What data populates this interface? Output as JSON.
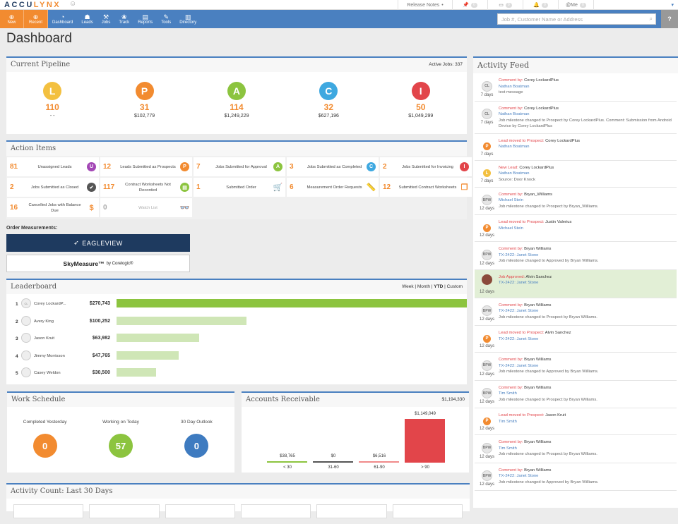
{
  "app": {
    "logo_a": "ACCU",
    "logo_b": "LYNX"
  },
  "topbar": {
    "release_notes": "Release Notes",
    "counts": [
      "0",
      "0",
      "0",
      "0"
    ],
    "me": "@Me"
  },
  "nav": {
    "items": [
      {
        "label": "New",
        "icon": "plus-circle"
      },
      {
        "label": "Recent",
        "icon": "plus-circle"
      },
      {
        "label": "Dashboard",
        "icon": "gauge"
      },
      {
        "label": "Leads",
        "icon": "person"
      },
      {
        "label": "Jobs",
        "icon": "hammer"
      },
      {
        "label": "Track",
        "icon": "paw"
      },
      {
        "label": "Reports",
        "icon": "document"
      },
      {
        "label": "Tools",
        "icon": "wrench"
      },
      {
        "label": "Directory",
        "icon": "book"
      }
    ],
    "search_placeholder": "Job #, Customer Name or Address"
  },
  "page_title": "Dashboard",
  "pipeline": {
    "title": "Current Pipeline",
    "active_jobs": "Active Jobs: 337",
    "stages": [
      {
        "letter": "L",
        "color": "#f3c040",
        "count": "110",
        "value": "- -"
      },
      {
        "letter": "P",
        "color": "#f28b30",
        "count": "31",
        "value": "$102,779"
      },
      {
        "letter": "A",
        "color": "#8cc43f",
        "count": "114",
        "value": "$1,249,229"
      },
      {
        "letter": "C",
        "color": "#3ea8e0",
        "count": "32",
        "value": "$627,196"
      },
      {
        "letter": "I",
        "color": "#e2454a",
        "count": "50",
        "value": "$1,049,299"
      }
    ]
  },
  "action_items": {
    "title": "Action Items",
    "items": [
      {
        "n": "81",
        "label": "Unassigned Leads",
        "icon": "U",
        "color": "#a347b5"
      },
      {
        "n": "12",
        "label": "Leads Submitted as Prospects",
        "icon": "P",
        "color": "#f28b30"
      },
      {
        "n": "7",
        "label": "Jobs Submitted for Approval",
        "icon": "A",
        "color": "#8cc43f"
      },
      {
        "n": "3",
        "label": "Jobs Submitted as Completed",
        "icon": "C",
        "color": "#3ea8e0"
      },
      {
        "n": "2",
        "label": "Jobs Submitted for Invoicing",
        "icon": "I",
        "color": "#e2454a"
      },
      {
        "n": "2",
        "label": "Jobs Submitted as Closed",
        "icon": "✔",
        "color": "#555"
      },
      {
        "n": "117",
        "label": "Contract Worksheets Not Recorded",
        "icon": "▤",
        "color": "#8cc43f"
      },
      {
        "n": "1",
        "label": "Submitted Order",
        "icon": "🛒",
        "color": "plain"
      },
      {
        "n": "6",
        "label": "Measurement Order Requests",
        "icon": "📏",
        "color": "plain"
      },
      {
        "n": "12",
        "label": "Submitted Contract Worksheets",
        "icon": "❐",
        "color": "plain"
      },
      {
        "n": "16",
        "label": "Cancelled Jobs with Balance Due",
        "icon": "$",
        "color": "plain"
      },
      {
        "n": "0",
        "label": "Watch List",
        "icon": "👓",
        "color": "grey"
      }
    ]
  },
  "order_measurements": {
    "label": "Order Measurements:",
    "eagleview": "EAGLEVIEW",
    "skymeasure": "SkyMeasure™",
    "by": "by Corelogic®"
  },
  "leaderboard": {
    "title": "Leaderboard",
    "periods": [
      "Week",
      "Month",
      "YTD",
      "Custom"
    ],
    "active_period": "YTD",
    "rows": [
      {
        "rank": "1",
        "name": "Corey LockardP...",
        "initials": "CL",
        "value": "$270,743",
        "amount": 270743
      },
      {
        "rank": "2",
        "name": "Avery King",
        "initials": "",
        "value": "$100,252",
        "amount": 100252
      },
      {
        "rank": "3",
        "name": "Jason Kruit",
        "initials": "",
        "value": "$63,982",
        "amount": 63982
      },
      {
        "rank": "4",
        "name": "Jimmy Morrisson",
        "initials": "",
        "value": "$47,765",
        "amount": 47765
      },
      {
        "rank": "5",
        "name": "Casey Weldon",
        "initials": "",
        "value": "$30,500",
        "amount": 30500
      }
    ]
  },
  "work_schedule": {
    "title": "Work Schedule",
    "items": [
      {
        "label": "Completed Yesterday",
        "value": "0",
        "color": "#f28b30"
      },
      {
        "label": "Working on Today",
        "value": "57",
        "color": "#8cc43f"
      },
      {
        "label": "30 Day Outlook",
        "value": "0",
        "color": "#3e7bc0"
      }
    ]
  },
  "accounts_receivable": {
    "title": "Accounts Receivable",
    "total": "$1,194,330",
    "chart_data": {
      "type": "bar",
      "categories": [
        "< 30",
        "31-60",
        "61-90",
        "> 90"
      ],
      "values": [
        38765,
        0,
        6516,
        1149049
      ],
      "labels": [
        "$38,765",
        "$0",
        "$6,516",
        "$1,149,049"
      ],
      "colors": [
        "#8cc43f",
        "#555555",
        "#f08a8a",
        "#e2454a"
      ]
    }
  },
  "activity_count": {
    "title": "Activity Count: Last 30 Days"
  },
  "feed": {
    "title": "Activity Feed",
    "items": [
      {
        "av": "CL",
        "kind": "avatar",
        "type": "Comment by:",
        "actor": "Corey LockardPlus",
        "link": "Nathan Boatman",
        "text": "test message",
        "age": "7 days"
      },
      {
        "av": "CL",
        "kind": "avatar",
        "type": "Comment by:",
        "actor": "Corey LockardPlus",
        "link": "Nathan Boatman",
        "text": "Job milestone changed to Prospect by Corey LockardPlus. Comment: Submission from Android Device by Corey LockardPlus",
        "age": "7 days"
      },
      {
        "av": "P",
        "kind": "badge",
        "color": "#f28b30",
        "type": "Lead moved to Prospect:",
        "actor": "Corey LockardPlus",
        "link": "Nathan Boatman",
        "text": "",
        "age": "7 days"
      },
      {
        "av": "L",
        "kind": "badge",
        "color": "#f3c040",
        "type": "New Lead:",
        "actor": "Corey LockardPlus",
        "link": "Nathan Boatman",
        "text": "Source: Door Knock",
        "age": "7 days"
      },
      {
        "av": "BPW",
        "kind": "avatar",
        "type": "Comment by:",
        "actor": "Bryan_Williams",
        "link": "Michael Stein",
        "text": "Job milestone changed to Prospect by Bryan_Williams.",
        "age": "12 days"
      },
      {
        "av": "P",
        "kind": "badge",
        "color": "#f28b30",
        "type": "Lead moved to Prospect:",
        "actor": "Justin Valerius",
        "link": "Michael Stein",
        "text": "",
        "age": "12 days"
      },
      {
        "av": "BPW",
        "kind": "avatar",
        "type": "Comment by:",
        "actor": "Bryan Williams",
        "link": "TX-2422: Janet Stone",
        "text": "Job milestone changed to Approved by Bryan Williams.",
        "age": "12 days"
      },
      {
        "av": "",
        "kind": "photo",
        "highlight": true,
        "type": "Job Approved:",
        "actor": "Alvin Sanchez",
        "link": "TX-2422: Janet Stone",
        "text": "",
        "age": "12 days"
      },
      {
        "av": "BPW",
        "kind": "avatar",
        "type": "Comment by:",
        "actor": "Bryan Williams",
        "link": "TX-2422: Janet Stone",
        "text": "Job milestone changed to Prospect by Bryan Williams.",
        "age": "12 days"
      },
      {
        "av": "P",
        "kind": "badge",
        "color": "#f28b30",
        "type": "Lead moved to Prospect:",
        "actor": "Alvin Sanchez",
        "link": "TX-2422: Janet Stone",
        "text": "",
        "age": "12 days"
      },
      {
        "av": "BPW",
        "kind": "avatar",
        "type": "Comment by:",
        "actor": "Bryan Williams",
        "link": "TX-2422: Janet Stone",
        "text": "Job milestone changed to Approved by Bryan Williams.",
        "age": "12 days"
      },
      {
        "av": "BPW",
        "kind": "avatar",
        "type": "Comment by:",
        "actor": "Bryan Williams",
        "link": "Tim Smith",
        "text": "Job milestone changed to Prospect by Bryan Williams.",
        "age": "12 days"
      },
      {
        "av": "P",
        "kind": "badge",
        "color": "#f28b30",
        "type": "Lead moved to Prospect:",
        "actor": "Jason Kruit",
        "link": "Tim Smith",
        "text": "",
        "age": "12 days"
      },
      {
        "av": "BPW",
        "kind": "avatar",
        "type": "Comment by:",
        "actor": "Bryan Williams",
        "link": "Tim Smith",
        "text": "Job milestone changed to Prospect by Bryan Williams.",
        "age": "12 days"
      },
      {
        "av": "BPW",
        "kind": "avatar",
        "type": "Comment by:",
        "actor": "Bryan Williams",
        "link": "TX-2422: Janet Stone",
        "text": "Job milestone changed to Approved by Bryan Williams.",
        "age": "12 days"
      }
    ]
  }
}
